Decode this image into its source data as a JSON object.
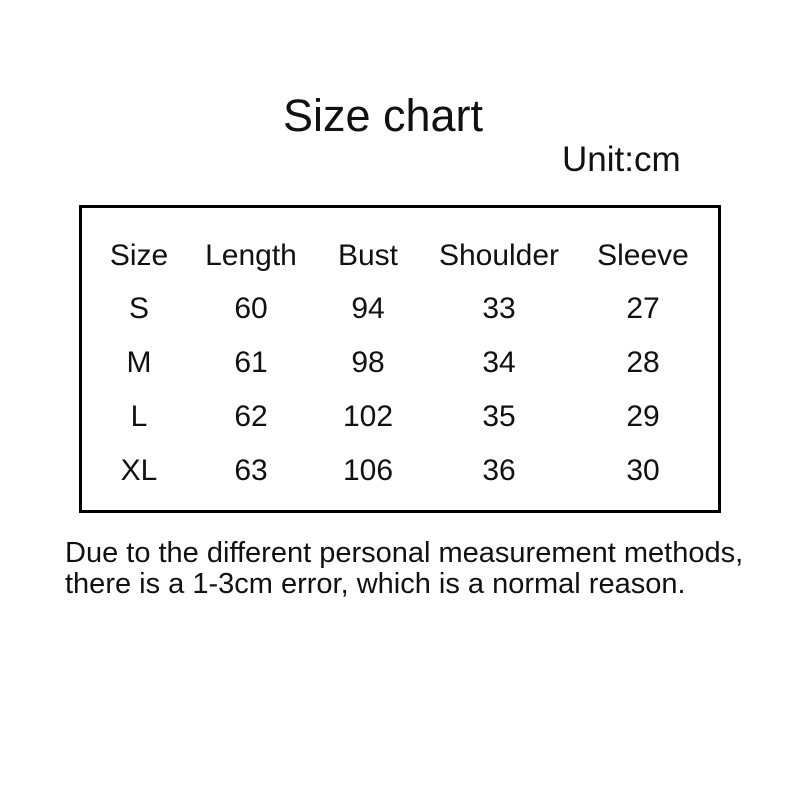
{
  "title": "Size chart",
  "unit_label": "Unit:cm",
  "table": {
    "headers": [
      "Size",
      "Length",
      "Bust",
      "Shoulder",
      "Sleeve"
    ],
    "rows": [
      [
        "S",
        "60",
        "94",
        "33",
        "27"
      ],
      [
        "M",
        "61",
        "98",
        "34",
        "28"
      ],
      [
        "L",
        "62",
        "102",
        "35",
        "29"
      ],
      [
        "XL",
        "63",
        "106",
        "36",
        "30"
      ]
    ]
  },
  "footer": {
    "line1": "Due to the different personal measurement methods,",
    "line2": "there is a 1-3cm error, which is a normal reason."
  },
  "colors": {
    "background": "#ffffff",
    "text": "#111111",
    "table_border": "#000000"
  },
  "chart_data": {
    "type": "table",
    "title": "Size chart",
    "unit": "cm",
    "columns": [
      "Size",
      "Length",
      "Bust",
      "Shoulder",
      "Sleeve"
    ],
    "rows": [
      {
        "Size": "S",
        "Length": 60,
        "Bust": 94,
        "Shoulder": 33,
        "Sleeve": 27
      },
      {
        "Size": "M",
        "Length": 61,
        "Bust": 98,
        "Shoulder": 34,
        "Sleeve": 28
      },
      {
        "Size": "L",
        "Length": 62,
        "Bust": 102,
        "Shoulder": 35,
        "Sleeve": 29
      },
      {
        "Size": "XL",
        "Length": 63,
        "Bust": 106,
        "Shoulder": 36,
        "Sleeve": 30
      }
    ],
    "note": "Due to the different personal measurement methods, there is a 1-3cm error, which is a normal reason."
  }
}
